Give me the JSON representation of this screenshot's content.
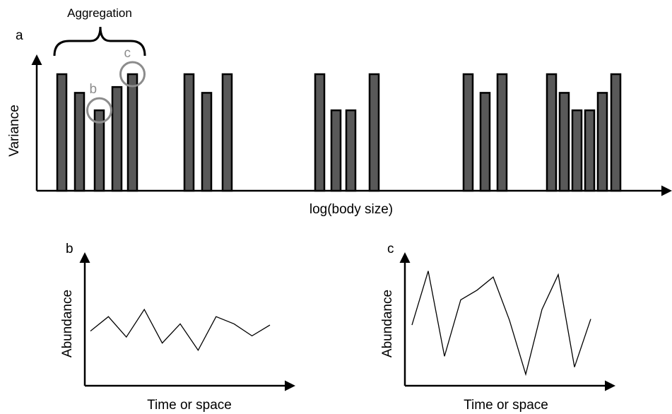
{
  "panels": {
    "a": {
      "letter": "a",
      "xlabel": "log(body size)",
      "ylabel": "Variance",
      "bracket_label": "Aggregation",
      "groups": [
        [
          1.0,
          0.84,
          0.69,
          0.89,
          1.0
        ],
        [
          1.0,
          0.84,
          1.0
        ],
        [
          1.0,
          0.69,
          0.69,
          1.0
        ],
        [
          1.0,
          0.84,
          1.0
        ],
        [
          1.0,
          0.84,
          0.69,
          0.69,
          0.84,
          1.0
        ]
      ],
      "highlights": [
        {
          "label": "b",
          "group": 0,
          "bar": 2
        },
        {
          "label": "c",
          "group": 0,
          "bar": 4
        }
      ]
    },
    "b": {
      "letter": "b",
      "xlabel": "Time or space",
      "ylabel": "Abundance",
      "series": [
        0.42,
        0.54,
        0.37,
        0.6,
        0.32,
        0.48,
        0.26,
        0.54,
        0.48,
        0.38,
        0.47
      ]
    },
    "c": {
      "letter": "c",
      "xlabel": "Time or space",
      "ylabel": "Abundance",
      "series": [
        0.47,
        0.92,
        0.21,
        0.68,
        0.76,
        0.87,
        0.51,
        0.06,
        0.6,
        0.89,
        0.12,
        0.52
      ]
    }
  }
}
